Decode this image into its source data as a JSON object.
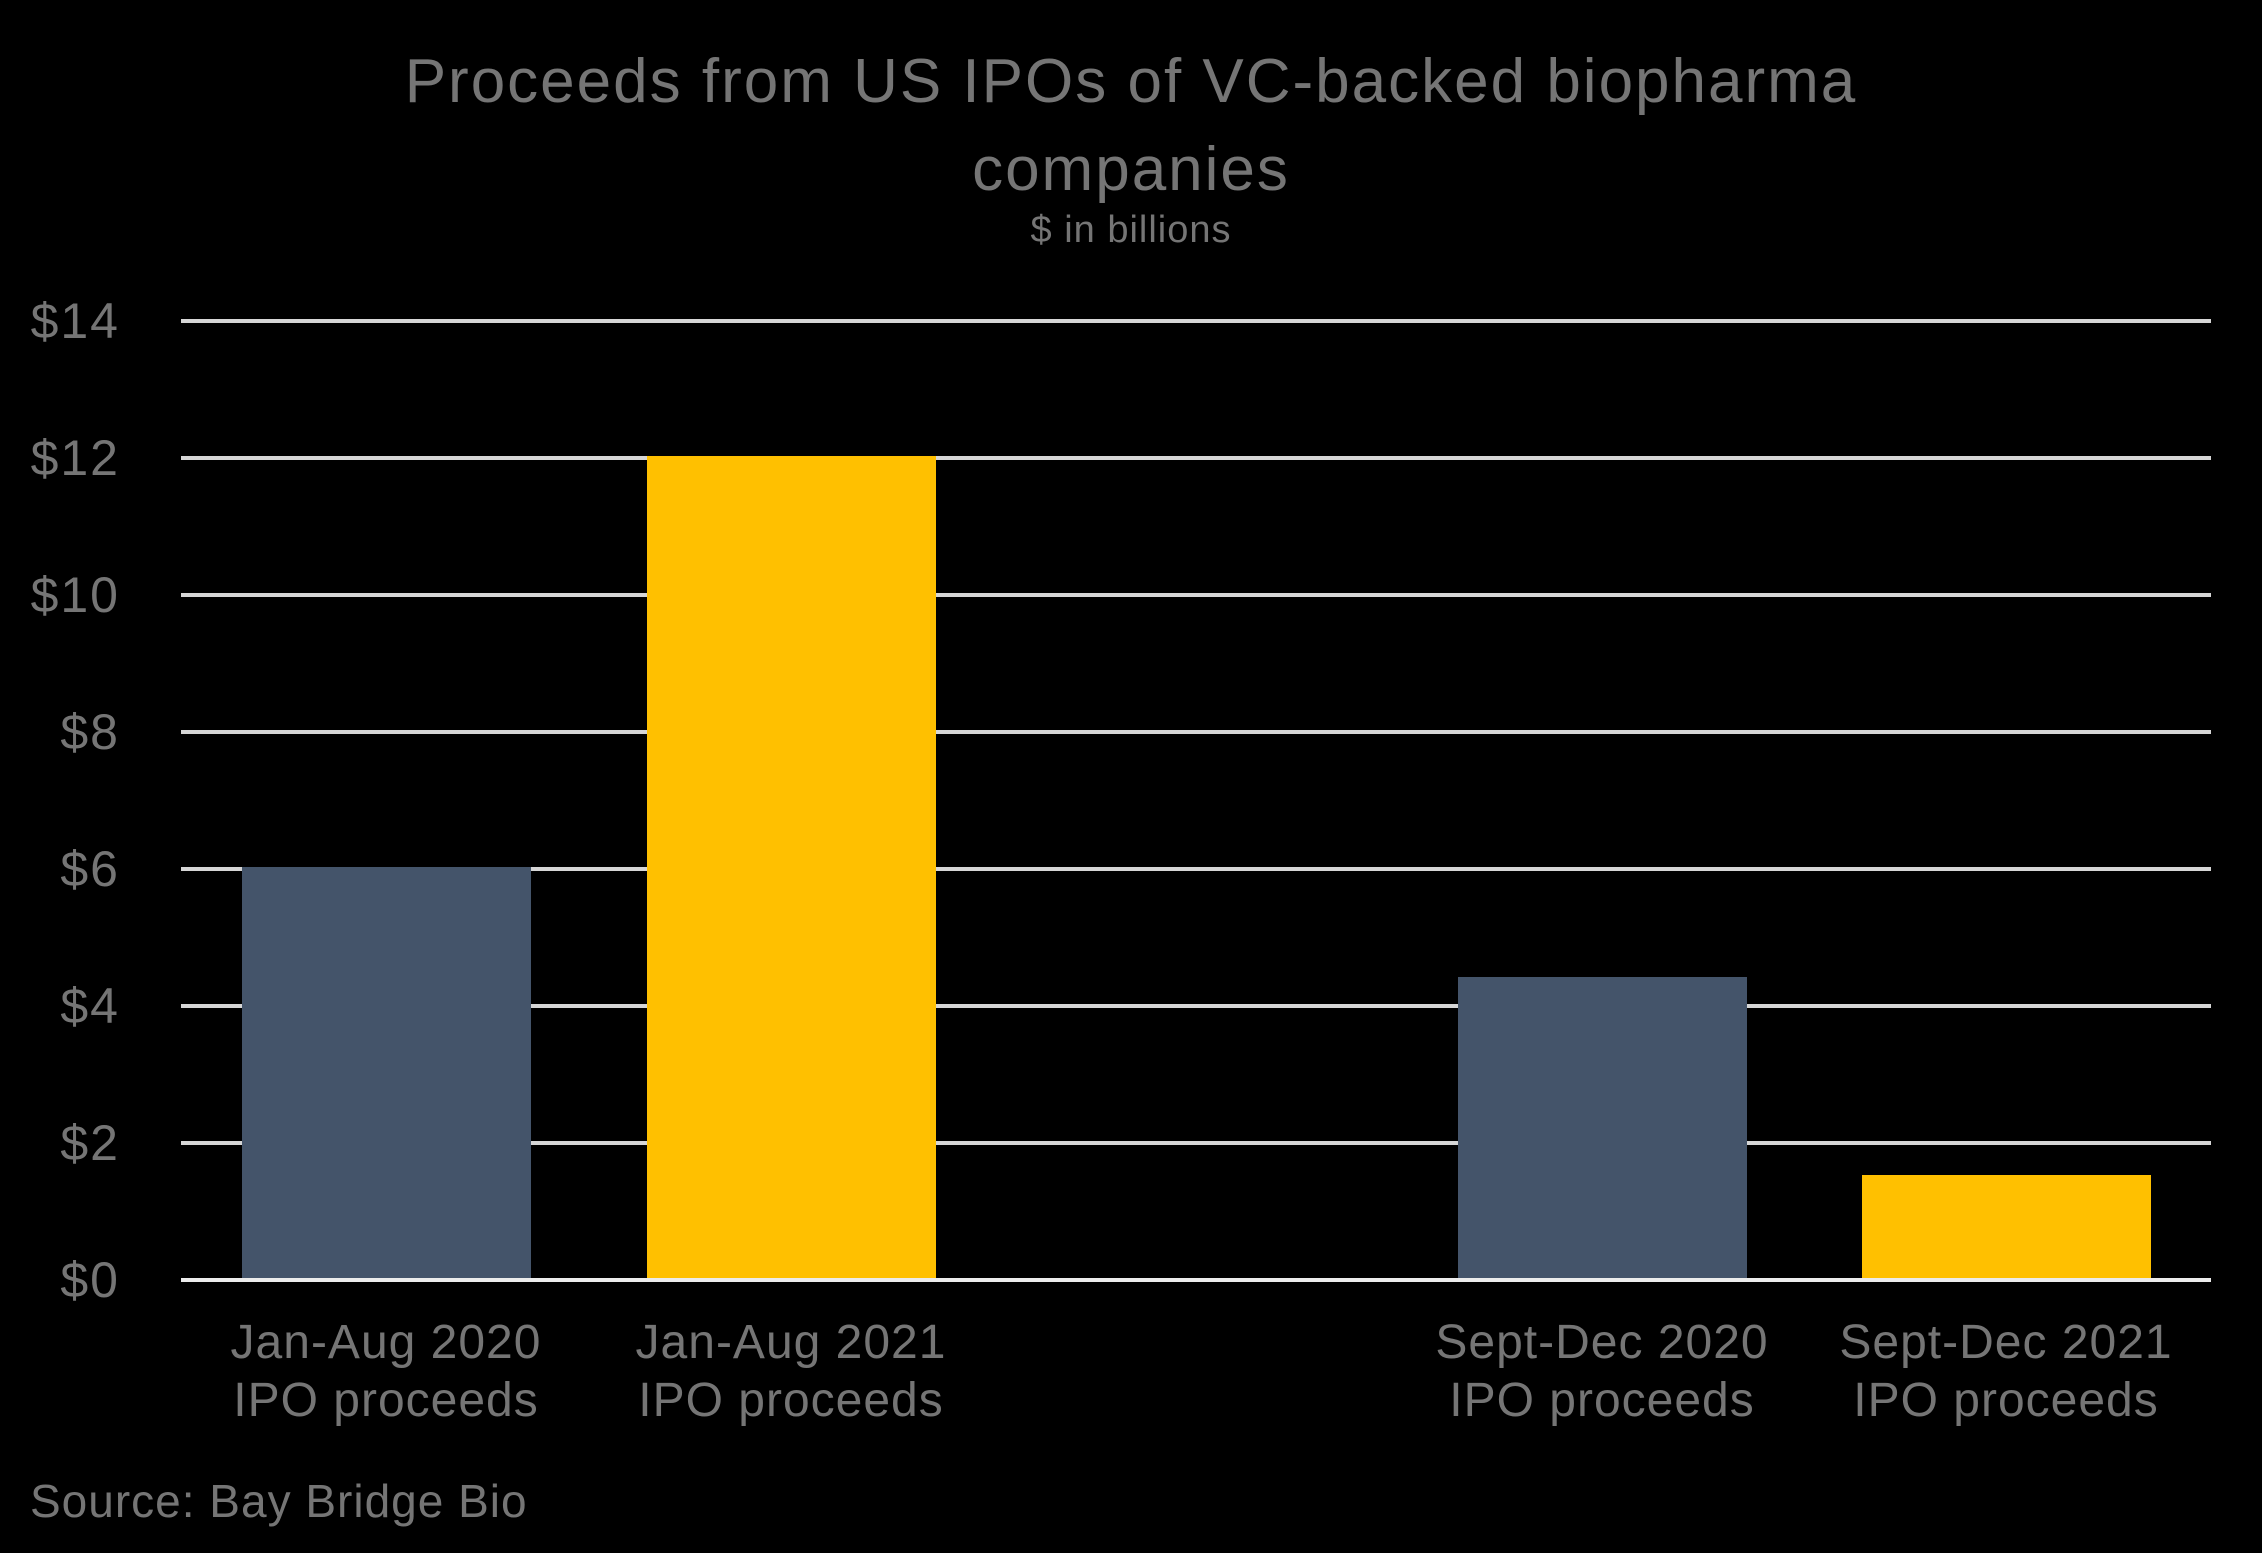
{
  "title": {
    "line1": "Proceeds from US IPOs of VC-backed biopharma",
    "line2": "companies"
  },
  "subtitle": "$ in billions",
  "source_note": "Source: Bay Bridge Bio",
  "colors": {
    "background": "#000000",
    "dark_bar": "#44546A",
    "gold_bar": "#FFC000",
    "gridline": "#D6D6D6",
    "axis_line": "#ECECEC",
    "text": "#757575"
  },
  "chart_data": {
    "type": "bar",
    "title": "Proceeds from US IPOs of VC-backed biopharma companies",
    "subtitle": "$ in billions",
    "categories": [
      "Jan-Aug 2020 IPO proceeds",
      "Jan-Aug 2021 IPO proceeds",
      "Sept-Dec 2020 IPO proceeds",
      "Sept-Dec 2021 IPO proceeds"
    ],
    "category_labels": [
      [
        "Jan-Aug 2020",
        "IPO proceeds"
      ],
      [
        "Jan-Aug 2021",
        "IPO proceeds"
      ],
      [
        "Sept-Dec 2020",
        "IPO proceeds"
      ],
      [
        "Sept-Dec 2021",
        "IPO proceeds"
      ]
    ],
    "values": [
      6.0,
      12.0,
      4.4,
      1.5
    ],
    "bar_colors": [
      "#44546A",
      "#FFC000",
      "#44546A",
      "#FFC000"
    ],
    "ylabel": "$ in billions",
    "ylim": [
      0,
      14
    ],
    "ytick_step": 2,
    "ytick_labels": [
      "$14",
      "$12",
      "$10",
      "$8",
      "$6",
      "$4",
      "$2",
      "$0"
    ],
    "grid": true,
    "legend": false,
    "annotations": [],
    "source": "Source: Bay Bridge Bio"
  }
}
